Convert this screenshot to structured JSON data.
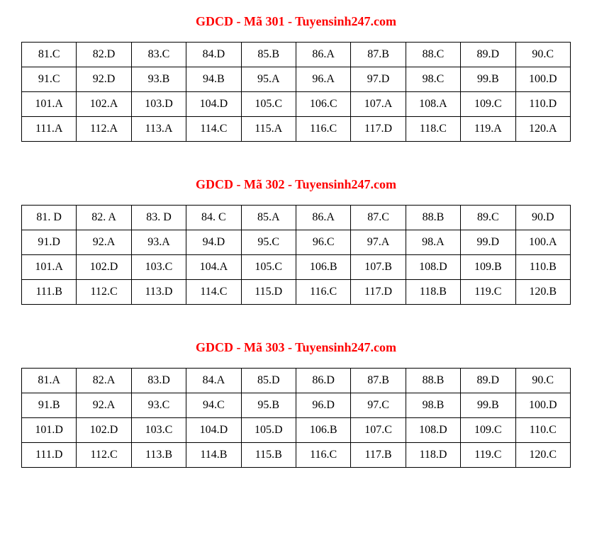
{
  "colors": {
    "title_color": "#ff0000",
    "text_color": "#000000",
    "border_color": "#000000",
    "background_color": "#ffffff"
  },
  "typography": {
    "font_family": "Times New Roman",
    "title_fontsize": 18,
    "cell_fontsize": 16,
    "title_fontweight": "bold"
  },
  "layout": {
    "columns": 10,
    "rows_per_table": 4,
    "cell_padding_v": 8
  },
  "sections": [
    {
      "title": "GDCD - Mã 301 - Tuyensinh247.com",
      "rows": [
        [
          "81.C",
          "82.D",
          "83.C",
          "84.D",
          "85.B",
          "86.A",
          "87.B",
          "88.C",
          "89.D",
          "90.C"
        ],
        [
          "91.C",
          "92.D",
          "93.B",
          "94.B",
          "95.A",
          "96.A",
          "97.D",
          "98.C",
          "99.B",
          "100.D"
        ],
        [
          "101.A",
          "102.A",
          "103.D",
          "104.D",
          "105.C",
          "106.C",
          "107.A",
          "108.A",
          "109.C",
          "110.D"
        ],
        [
          "111.A",
          "112.A",
          "113.A",
          "114.C",
          "115.A",
          "116.C",
          "117.D",
          "118.C",
          "119.A",
          "120.A"
        ]
      ]
    },
    {
      "title": "GDCD - Mã 302 - Tuyensinh247.com",
      "rows": [
        [
          "81. D",
          "82. A",
          "83. D",
          "84. C",
          "85.A",
          "86.A",
          "87.C",
          "88.B",
          "89.C",
          "90.D"
        ],
        [
          "91.D",
          "92.A",
          "93.A",
          "94.D",
          "95.C",
          "96.C",
          "97.A",
          "98.A",
          "99.D",
          "100.A"
        ],
        [
          "101.A",
          "102.D",
          "103.C",
          "104.A",
          "105.C",
          "106.B",
          "107.B",
          "108.D",
          "109.B",
          "110.B"
        ],
        [
          "111.B",
          "112.C",
          "113.D",
          "114.C",
          "115.D",
          "116.C",
          "117.D",
          "118.B",
          "119.C",
          "120.B"
        ]
      ]
    },
    {
      "title": "GDCD - Mã 303 - Tuyensinh247.com",
      "rows": [
        [
          "81.A",
          "82.A",
          "83.D",
          "84.A",
          "85.D",
          "86.D",
          "87.B",
          "88.B",
          "89.D",
          "90.C"
        ],
        [
          "91.B",
          "92.A",
          "93.C",
          "94.C",
          "95.B",
          "96.D",
          "97.C",
          "98.B",
          "99.B",
          "100.D"
        ],
        [
          "101.D",
          "102.D",
          "103.C",
          "104.D",
          "105.D",
          "106.B",
          "107.C",
          "108.D",
          "109.C",
          "110.C"
        ],
        [
          "111.D",
          "112.C",
          "113.B",
          "114.B",
          "115.B",
          "116.C",
          "117.B",
          "118.D",
          "119.C",
          "120.C"
        ]
      ]
    }
  ]
}
